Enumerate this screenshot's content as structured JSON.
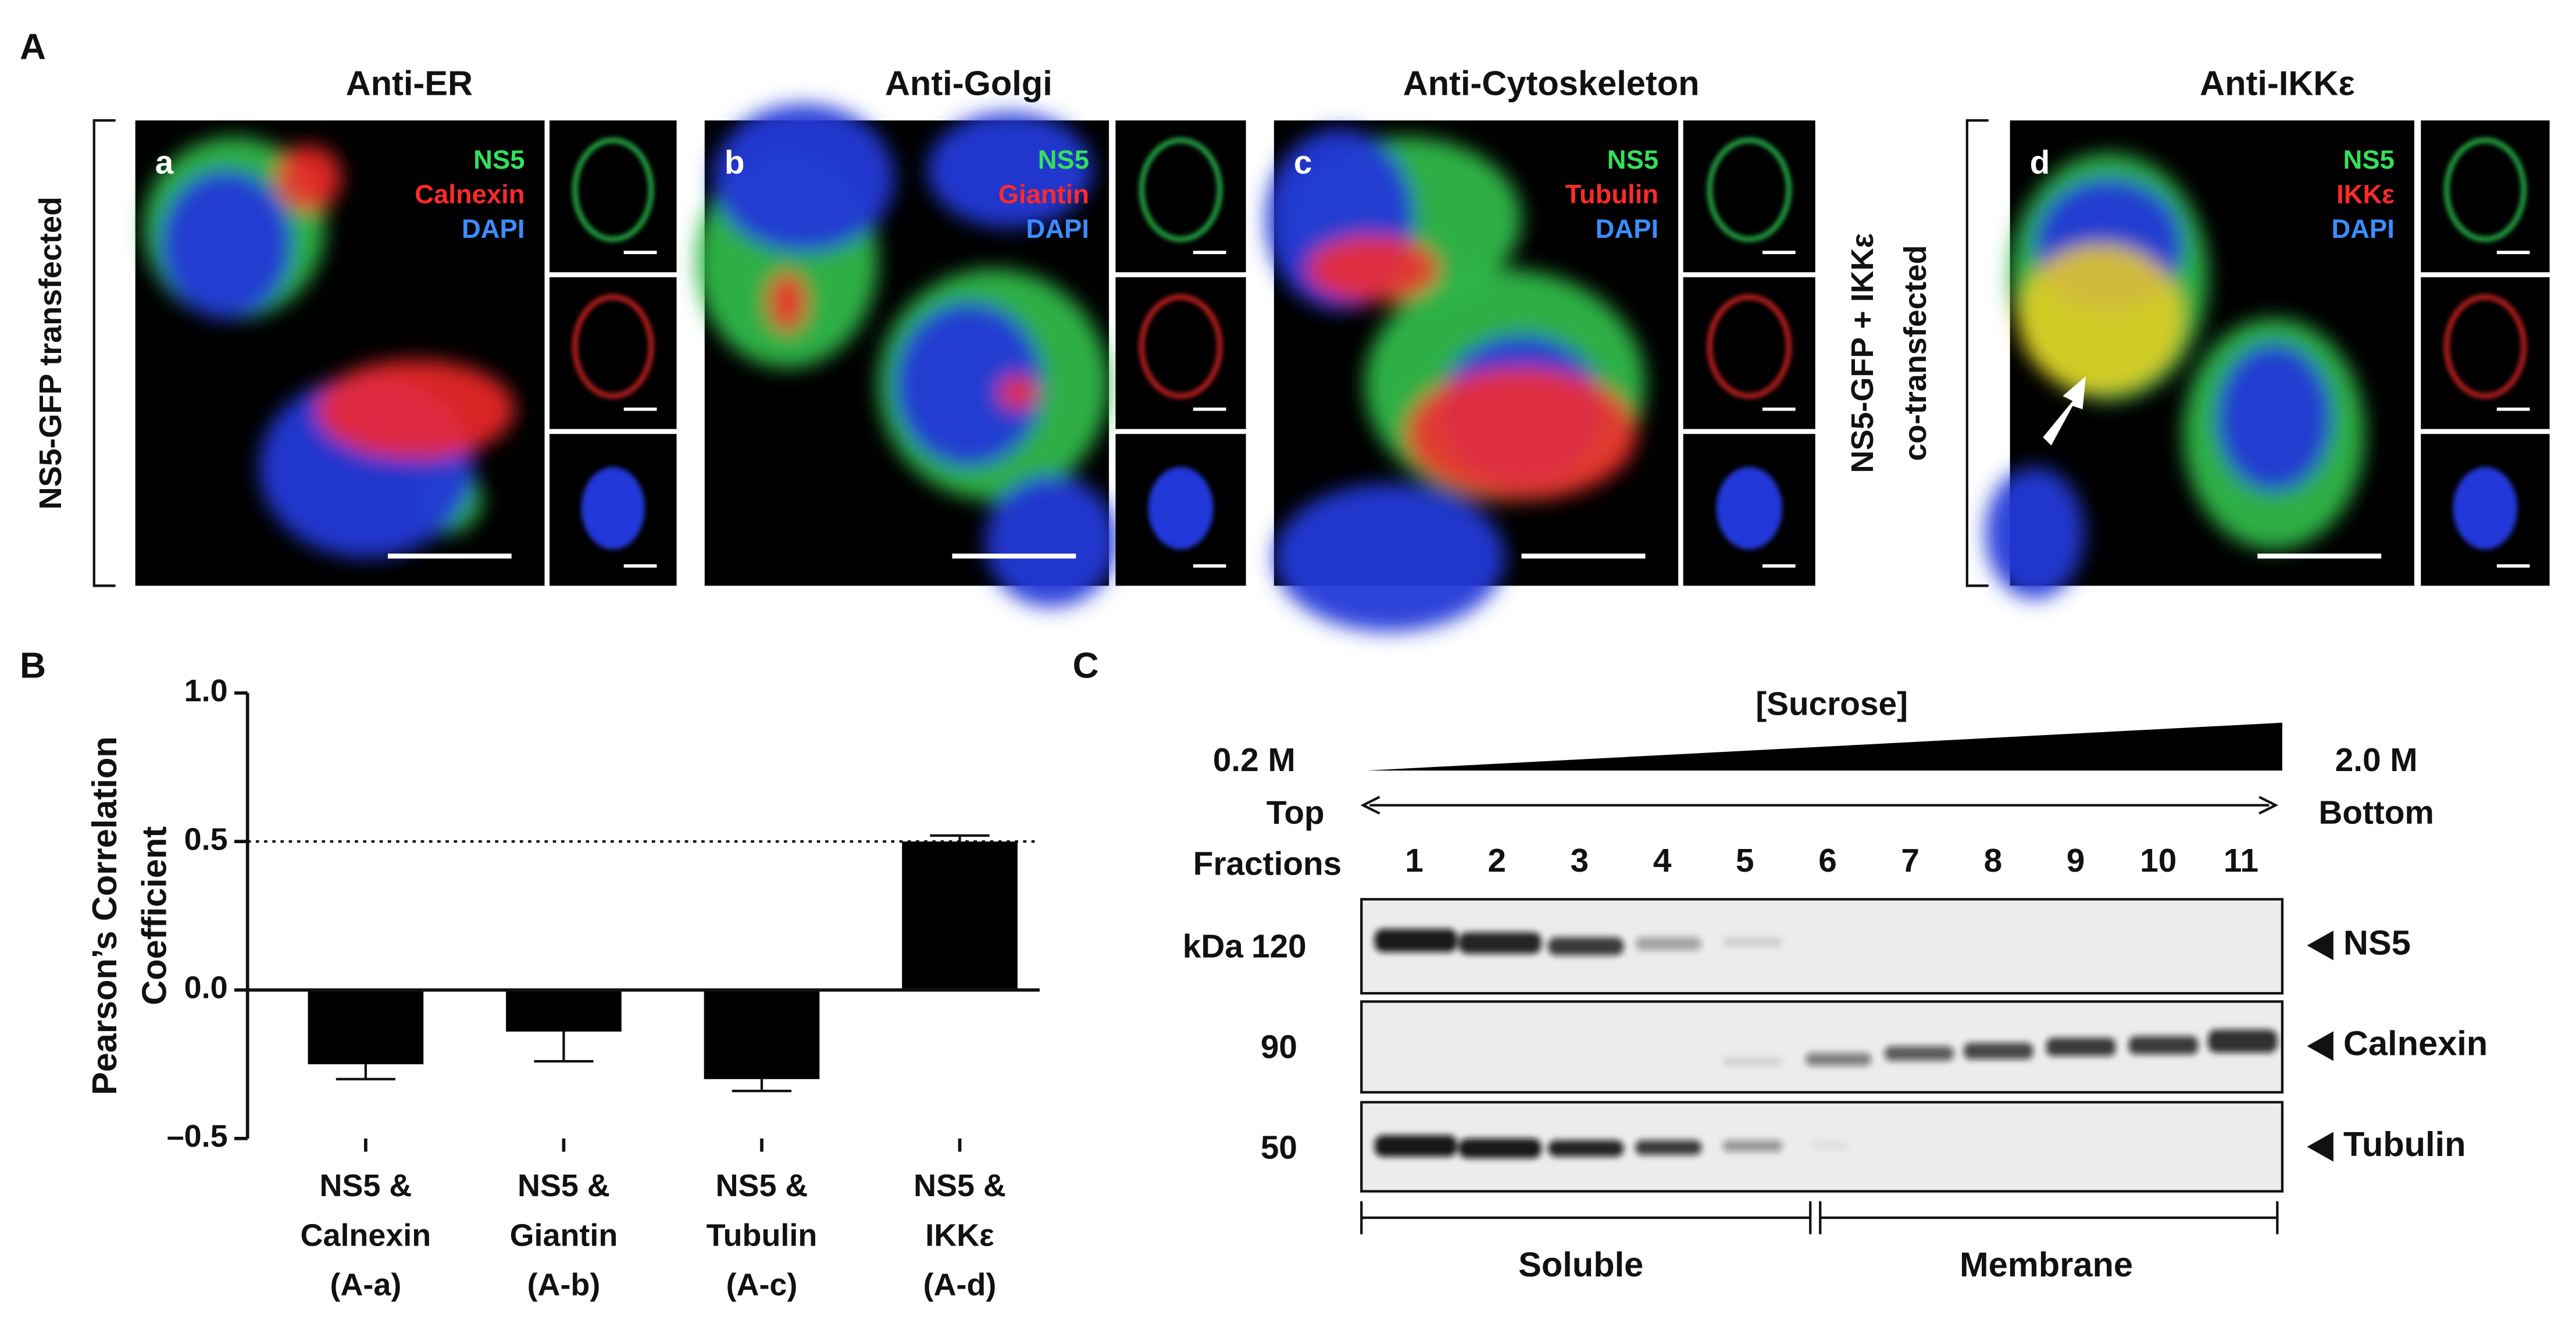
{
  "panel_a": {
    "label": "A",
    "row_label_1": "NS5-GFP transfected",
    "row_label_2": [
      "NS5-GFP + IKKε",
      "co-transfected"
    ],
    "columns": [
      {
        "title": "Anti-ER",
        "letter": "a",
        "stains": [
          "NS5",
          "Calnexin",
          "DAPI"
        ]
      },
      {
        "title": "Anti-Golgi",
        "letter": "b",
        "stains": [
          "NS5",
          "Giantin",
          "DAPI"
        ]
      },
      {
        "title": "Anti-Cytoskeleton",
        "letter": "c",
        "stains": [
          "NS5",
          "Tubulin",
          "DAPI"
        ]
      },
      {
        "title": "Anti-IKKε",
        "letter": "d",
        "stains": [
          "NS5",
          "IKKε",
          "DAPI"
        ]
      }
    ]
  },
  "chart_data": {
    "type": "bar",
    "panel_label": "B",
    "ylabel": [
      "Pearson’s Correlation",
      "Coefficient"
    ],
    "categories": [
      [
        "NS5 &",
        "Calnexin",
        "(A-a)"
      ],
      [
        "NS5 &",
        "Giantin",
        "(A-b)"
      ],
      [
        "NS5 &",
        "Tubulin",
        "(A-c)"
      ],
      [
        "NS5 &",
        "IKKε",
        "(A-d)"
      ]
    ],
    "values": [
      -0.25,
      -0.14,
      -0.3,
      0.5
    ],
    "errors": [
      0.05,
      0.1,
      0.04,
      0.02
    ],
    "color": "#000000",
    "ylim": [
      -0.5,
      1.0
    ],
    "yticks": [
      {
        "value": -0.5,
        "label": "–0.5"
      },
      {
        "value": 0.0,
        "label": "0.0"
      },
      0.5,
      {
        "value": 1.0,
        "label": "1.0"
      }
    ],
    "reference_line": 0.5
  },
  "panel_c": {
    "label": "C",
    "title": "[Sucrose]",
    "low": "0.2 M",
    "high": "2.0 M",
    "top": "Top",
    "bottom": "Bottom",
    "fractions_label": "Fractions",
    "fractions": [
      "1",
      "2",
      "3",
      "4",
      "5",
      "6",
      "7",
      "8",
      "9",
      "10",
      "11"
    ],
    "kda_label": "kDa",
    "blots": [
      {
        "kda": "120",
        "name": "NS5"
      },
      {
        "kda": "90",
        "name": "Calnexin"
      },
      {
        "kda": "50",
        "name": "Tubulin"
      }
    ],
    "groups": [
      "Soluble",
      "Membrane"
    ]
  }
}
